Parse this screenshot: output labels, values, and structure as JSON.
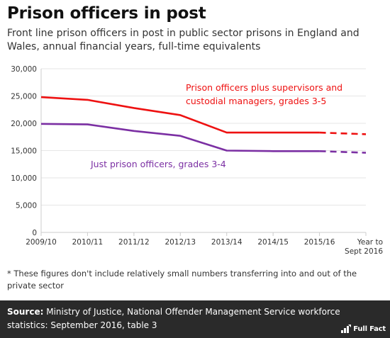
{
  "title": "Prison officers in post",
  "subtitle": "Front line prison officers in post in public sector prisons in England and Wales, annual financial years, full-time equivalents",
  "footnote": "* These figures don't include relatively small numbers transferring into and out of the private sector",
  "source": {
    "label": "Source:",
    "text": "Ministry of Justice, National Offender Management Service workforce statistics: September 2016, table 3"
  },
  "logo": {
    "text": "Full Fact",
    "icon": "full-fact-logo-icon"
  },
  "colors": {
    "red": "#ee1111",
    "purple": "#7b2fa3",
    "axis": "#cccccc",
    "grid": "#e6e6e6"
  },
  "chart_data": {
    "type": "line",
    "categories": [
      "2009/10",
      "2010/11",
      "2011/12",
      "2012/13",
      "2013/14",
      "2014/15",
      "2015/16",
      "Year to Sept 2016"
    ],
    "category_lines": [
      [
        "2009/10"
      ],
      [
        "2010/11"
      ],
      [
        "2011/12"
      ],
      [
        "2012/13"
      ],
      [
        "2013/14"
      ],
      [
        "2014/15"
      ],
      [
        "2015/16"
      ],
      [
        "Year to",
        "Sept 2016"
      ]
    ],
    "ylim": [
      0,
      30000
    ],
    "yticks": [
      0,
      5000,
      10000,
      15000,
      20000,
      25000,
      30000
    ],
    "ytick_labels": [
      "0",
      "5,000",
      "10,000",
      "15,000",
      "20,000",
      "25,000",
      "30,000"
    ],
    "grid": true,
    "series": [
      {
        "name": "Prison officers plus supervisors and custodial managers, grades 3-5",
        "label_lines": [
          "Prison officers plus supervisors and",
          "custodial managers, grades 3-5"
        ],
        "color": "#ee1111",
        "values": [
          24800,
          24300,
          22800,
          21500,
          18300,
          18300,
          18300,
          18000
        ],
        "dashed_from_index": 6
      },
      {
        "name": "Just prison officers, grades 3-4",
        "label_lines": [
          "Just prison officers, grades 3-4"
        ],
        "color": "#7b2fa3",
        "values": [
          19900,
          19800,
          18600,
          17700,
          15000,
          14900,
          14900,
          14600
        ],
        "dashed_from_index": 6
      }
    ]
  }
}
